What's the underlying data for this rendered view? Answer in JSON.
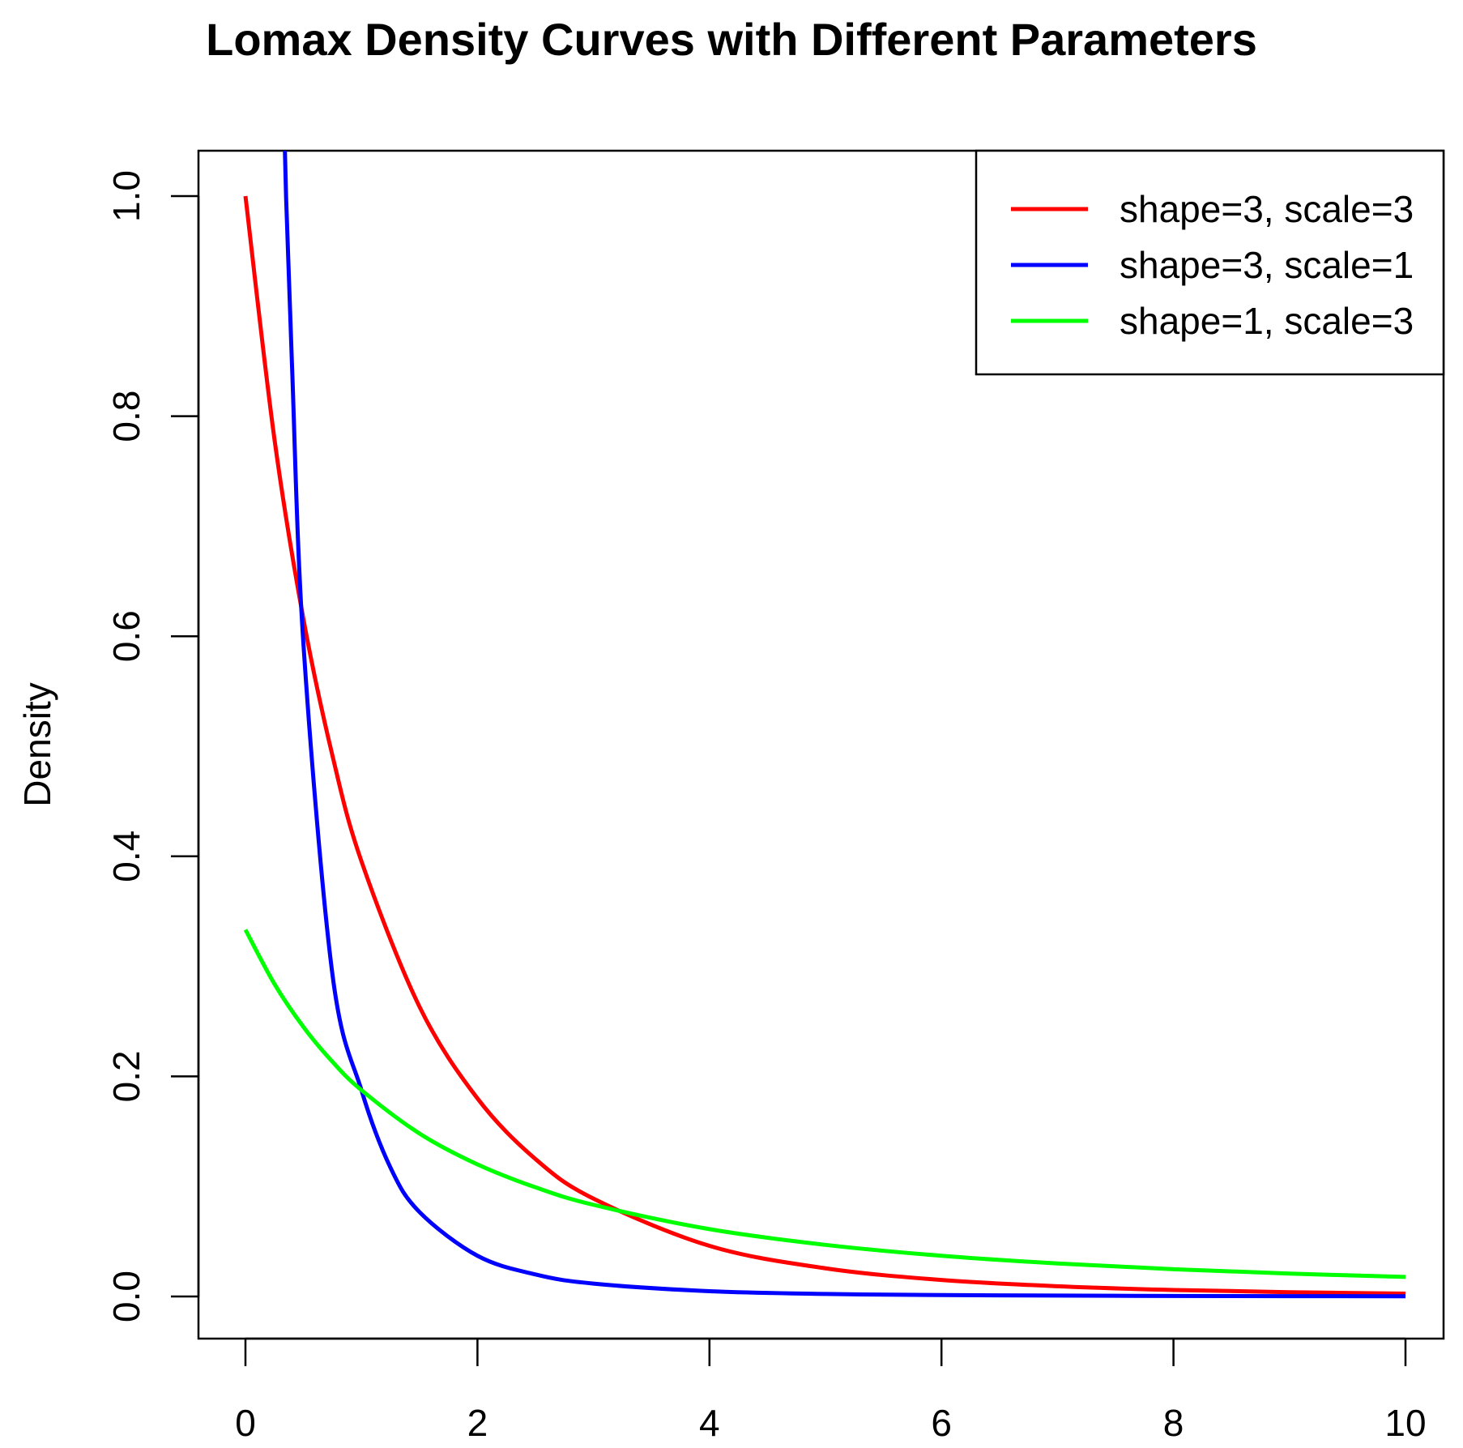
{
  "chart_data": {
    "type": "line",
    "title": "Lomax Density Curves with Different Parameters",
    "xlabel": "",
    "ylabel": "Density",
    "xlim": [
      0,
      10
    ],
    "ylim": [
      0,
      1
    ],
    "x_ticks": [
      "0",
      "2",
      "4",
      "6",
      "8",
      "10"
    ],
    "y_ticks": [
      "0.0",
      "0.2",
      "0.4",
      "0.6",
      "0.8",
      "1.0"
    ],
    "x_tick_values": [
      0,
      2,
      4,
      6,
      8,
      10
    ],
    "y_tick_values": [
      0,
      0.2,
      0.4,
      0.6,
      0.8,
      1.0
    ],
    "legend_position": "top-right",
    "series": [
      {
        "name": "shape=3, scale=3",
        "color": "#ff0000",
        "x": [
          0,
          0.25,
          0.5,
          0.75,
          1,
          1.5,
          2,
          2.5,
          3,
          4,
          5,
          6,
          7,
          8,
          9,
          10
        ],
        "values": [
          1.0,
          0.7791,
          0.6155,
          0.4915,
          0.3955,
          0.2634,
          0.18,
          0.1249,
          0.0889,
          0.046,
          0.0256,
          0.015,
          0.0093,
          0.0059,
          0.0039,
          0.0026
        ]
      },
      {
        "name": "shape=3, scale=1",
        "color": "#0000ff",
        "x": [
          0.35,
          0.4,
          0.5,
          0.75,
          1,
          1.25,
          1.5,
          2,
          2.5,
          3,
          4,
          5,
          6,
          7,
          8,
          9,
          10
        ],
        "values": [
          1.0,
          0.8501,
          0.5926,
          0.2926,
          0.1875,
          0.1171,
          0.0768,
          0.037,
          0.02,
          0.0117,
          0.0048,
          0.0023,
          0.0013,
          0.0008,
          0.0005,
          0.0003,
          0.0002
        ]
      },
      {
        "name": "shape=1, scale=3",
        "color": "#00ff00",
        "x": [
          0,
          0.25,
          0.5,
          0.75,
          1,
          1.5,
          2,
          2.5,
          3,
          4,
          5,
          6,
          7,
          8,
          9,
          10
        ],
        "values": [
          0.3333,
          0.284,
          0.2449,
          0.2133,
          0.1875,
          0.1481,
          0.12,
          0.0992,
          0.0833,
          0.0612,
          0.0469,
          0.037,
          0.03,
          0.0248,
          0.0208,
          0.0178
        ]
      }
    ]
  }
}
